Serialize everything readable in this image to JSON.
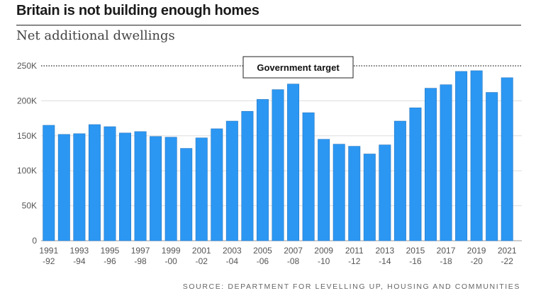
{
  "title": "Britain is not building enough homes",
  "subtitle": "Net additional dwellings",
  "source": "SOURCE: DEPARTMENT FOR LEVELLING UP, HOUSING AND COMMUNITIES",
  "colors": {
    "bar": "#2b97f3",
    "bar_edge": "#2a78c0",
    "grid": "#dddddd"
  },
  "chart_data": {
    "type": "bar",
    "title": "Britain is not building enough homes",
    "ylabel": "Net additional dwellings",
    "ylim": [
      0,
      250000
    ],
    "yticks": [
      0,
      50000,
      100000,
      150000,
      200000,
      250000
    ],
    "ytick_labels": [
      "0",
      "50K",
      "100K",
      "150K",
      "200K",
      "250K"
    ],
    "categories": [
      "1991-92",
      "1992-93",
      "1993-94",
      "1994-95",
      "1995-96",
      "1996-97",
      "1997-98",
      "1998-99",
      "1999-00",
      "2000-01",
      "2001-02",
      "2002-03",
      "2003-04",
      "2004-05",
      "2005-06",
      "2006-07",
      "2007-08",
      "2008-09",
      "2009-10",
      "2010-11",
      "2011-12",
      "2012-13",
      "2013-14",
      "2014-15",
      "2015-16",
      "2016-17",
      "2017-18",
      "2018-19",
      "2019-20",
      "2020-21",
      "2021-22"
    ],
    "xtick_labels": [
      [
        "1991",
        "-92"
      ],
      [
        "1993",
        "-94"
      ],
      [
        "1995",
        "-96"
      ],
      [
        "1997",
        "-98"
      ],
      [
        "1999",
        "-00"
      ],
      [
        "2001",
        "-02"
      ],
      [
        "2003",
        "-04"
      ],
      [
        "2005",
        "-06"
      ],
      [
        "2007",
        "-08"
      ],
      [
        "2009",
        "-10"
      ],
      [
        "2011",
        "-12"
      ],
      [
        "2013",
        "-14"
      ],
      [
        "2015",
        "-16"
      ],
      [
        "2017",
        "-18"
      ],
      [
        "2019",
        "-20"
      ],
      [
        "2021",
        "-22"
      ]
    ],
    "values": [
      165000,
      152000,
      153000,
      166000,
      163000,
      154000,
      156000,
      149000,
      148000,
      132000,
      147000,
      160000,
      171000,
      185000,
      202000,
      216000,
      224000,
      183000,
      145000,
      138000,
      135000,
      124000,
      137000,
      171000,
      190000,
      218000,
      223000,
      242000,
      243000,
      212000,
      233000
    ],
    "reference_line": {
      "value": 250000,
      "label": "Government target",
      "style": "dotted"
    },
    "grid": true
  }
}
